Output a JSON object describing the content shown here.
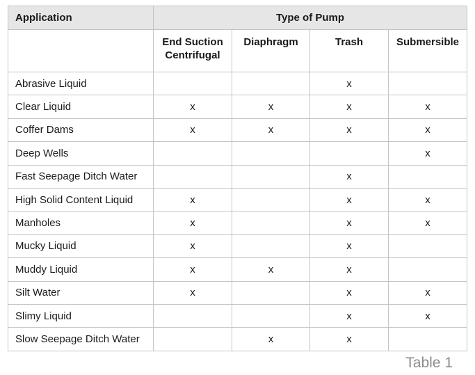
{
  "table": {
    "header_application": "Application",
    "header_type": "Type of Pump",
    "pump_types": [
      "End Suction\nCentrifugal",
      "Diaphragm",
      "Trash",
      "Submersible"
    ],
    "rows": [
      {
        "application": "Abrasive Liquid",
        "marks": [
          "",
          "",
          "x",
          ""
        ]
      },
      {
        "application": "Clear Liquid",
        "marks": [
          "x",
          "x",
          "x",
          "x"
        ]
      },
      {
        "application": "Coffer Dams",
        "marks": [
          "x",
          "x",
          "x",
          "x"
        ]
      },
      {
        "application": "Deep Wells",
        "marks": [
          "",
          "",
          "",
          "x"
        ]
      },
      {
        "application": "Fast Seepage Ditch Water",
        "marks": [
          "",
          "",
          "x",
          ""
        ]
      },
      {
        "application": "High Solid Content Liquid",
        "marks": [
          "x",
          "",
          "x",
          "x"
        ]
      },
      {
        "application": "Manholes",
        "marks": [
          "x",
          "",
          "x",
          "x"
        ]
      },
      {
        "application": "Mucky Liquid",
        "marks": [
          "x",
          "",
          "x",
          ""
        ]
      },
      {
        "application": "Muddy Liquid",
        "marks": [
          "x",
          "x",
          "x",
          ""
        ]
      },
      {
        "application": "Silt Water",
        "marks": [
          "x",
          "",
          "x",
          "x"
        ]
      },
      {
        "application": "Slimy Liquid",
        "marks": [
          "",
          "",
          "x",
          "x"
        ]
      },
      {
        "application": "Slow Seepage Ditch Water",
        "marks": [
          "",
          "x",
          "x",
          ""
        ]
      }
    ]
  },
  "caption": "Table 1"
}
